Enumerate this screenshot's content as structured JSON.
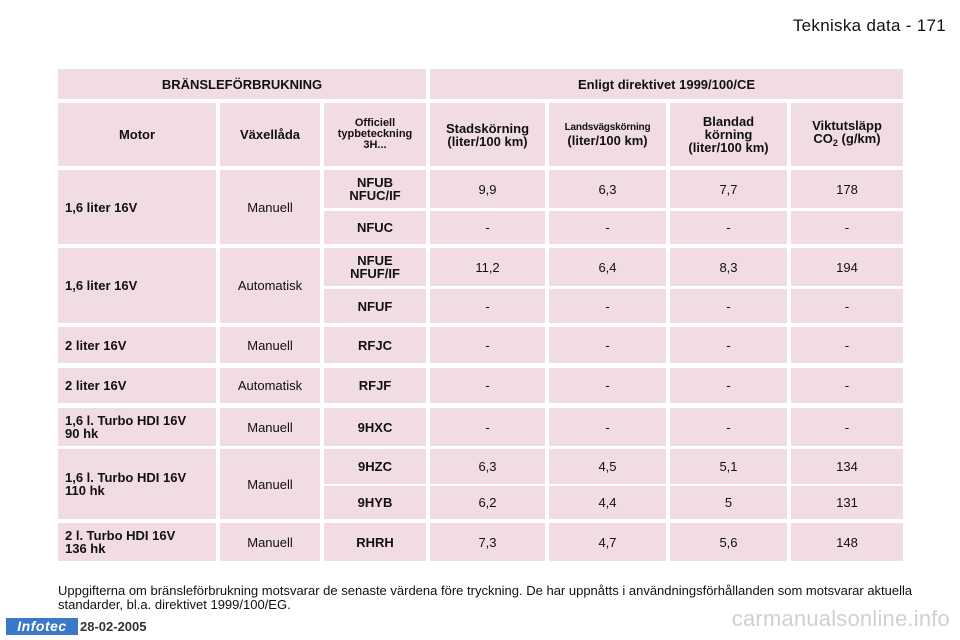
{
  "header": {
    "page_title": "Tekniska data - 171"
  },
  "table": {
    "title_left": "BRÄNSLEFÖRBRUKNING",
    "title_right": "Enligt direktivet 1999/100/CE",
    "col_motor": "Motor",
    "col_gearbox": "Växellåda",
    "col_type_line1": "Officiell",
    "col_type_line2": "typbeteckning",
    "col_type_line3": "3H...",
    "col_city_line1": "Stadskörning",
    "col_city_line2": "(liter/100 km)",
    "col_highway_line1": "Landsvägskörning",
    "col_highway_line2": "(liter/100 km)",
    "col_mixed_line1": "Blandad",
    "col_mixed_line2": "körning",
    "col_mixed_line3": "(liter/100 km)",
    "col_co2_line1": "Viktutsläpp",
    "col_co2_prefix": "CO",
    "col_co2_sub": "2",
    "col_co2_suffix": " (g/km)",
    "groups": [
      {
        "motor_line1": "1,6 liter 16V",
        "motor_line2": "",
        "gearbox": "Manuell",
        "rows": [
          {
            "type_line1": "NFUB",
            "type_line2": "NFUC/IF",
            "city": "9,9",
            "highway": "6,3",
            "mixed": "7,7",
            "co2": "178"
          },
          {
            "type_line1": "NFUC",
            "type_line2": "",
            "city": "-",
            "highway": "-",
            "mixed": "-",
            "co2": "-"
          }
        ]
      },
      {
        "motor_line1": "1,6 liter 16V",
        "motor_line2": "",
        "gearbox": "Automatisk",
        "rows": [
          {
            "type_line1": "NFUE",
            "type_line2": "NFUF/IF",
            "city": "11,2",
            "highway": "6,4",
            "mixed": "8,3",
            "co2": "194"
          },
          {
            "type_line1": "NFUF",
            "type_line2": "",
            "city": "-",
            "highway": "-",
            "mixed": "-",
            "co2": "-"
          }
        ]
      },
      {
        "motor_line1": "2 liter 16V",
        "motor_line2": "",
        "gearbox": "Manuell",
        "rows": [
          {
            "type_line1": "RFJC",
            "type_line2": "",
            "city": "-",
            "highway": "-",
            "mixed": "-",
            "co2": "-"
          }
        ]
      },
      {
        "motor_line1": "2 liter 16V",
        "motor_line2": "",
        "gearbox": "Automatisk",
        "rows": [
          {
            "type_line1": "RFJF",
            "type_line2": "",
            "city": "-",
            "highway": "-",
            "mixed": "-",
            "co2": "-"
          }
        ]
      },
      {
        "motor_line1": "1,6 l. Turbo HDI 16V",
        "motor_line2": "90 hk",
        "gearbox": "Manuell",
        "rows": [
          {
            "type_line1": "9HXC",
            "type_line2": "",
            "city": "-",
            "highway": "-",
            "mixed": "-",
            "co2": "-"
          }
        ]
      },
      {
        "motor_line1": "1,6 l. Turbo HDI 16V",
        "motor_line2": "110 hk",
        "gearbox": "Manuell",
        "rows": [
          {
            "type_line1": "9HZC",
            "type_line2": "",
            "city": "6,3",
            "highway": "4,5",
            "mixed": "5,1",
            "co2": "134"
          },
          {
            "type_line1": "9HYB",
            "type_line2": "",
            "city": "6,2",
            "highway": "4,4",
            "mixed": "5",
            "co2": "131"
          }
        ]
      },
      {
        "motor_line1": "2 l. Turbo HDI 16V",
        "motor_line2": "136 hk",
        "gearbox": "Manuell",
        "rows": [
          {
            "type_line1": "RHRH",
            "type_line2": "",
            "city": "7,3",
            "highway": "4,7",
            "mixed": "5,6",
            "co2": "148"
          }
        ]
      }
    ]
  },
  "footnote": "Uppgifterna om bränsleförbrukning motsvarar de senaste värdena före tryckning. De har uppnåtts i användningsförhållanden som motsvarar aktuella standarder, bl.a. direktivet 1999/100/EG.",
  "footer": {
    "logo_text": "Infotec",
    "date": "28-02-2005"
  },
  "watermark": "carmanualsonline.info",
  "colors": {
    "cell_bg": "#f1dbe5",
    "logo_bg": "#3a78c9"
  }
}
